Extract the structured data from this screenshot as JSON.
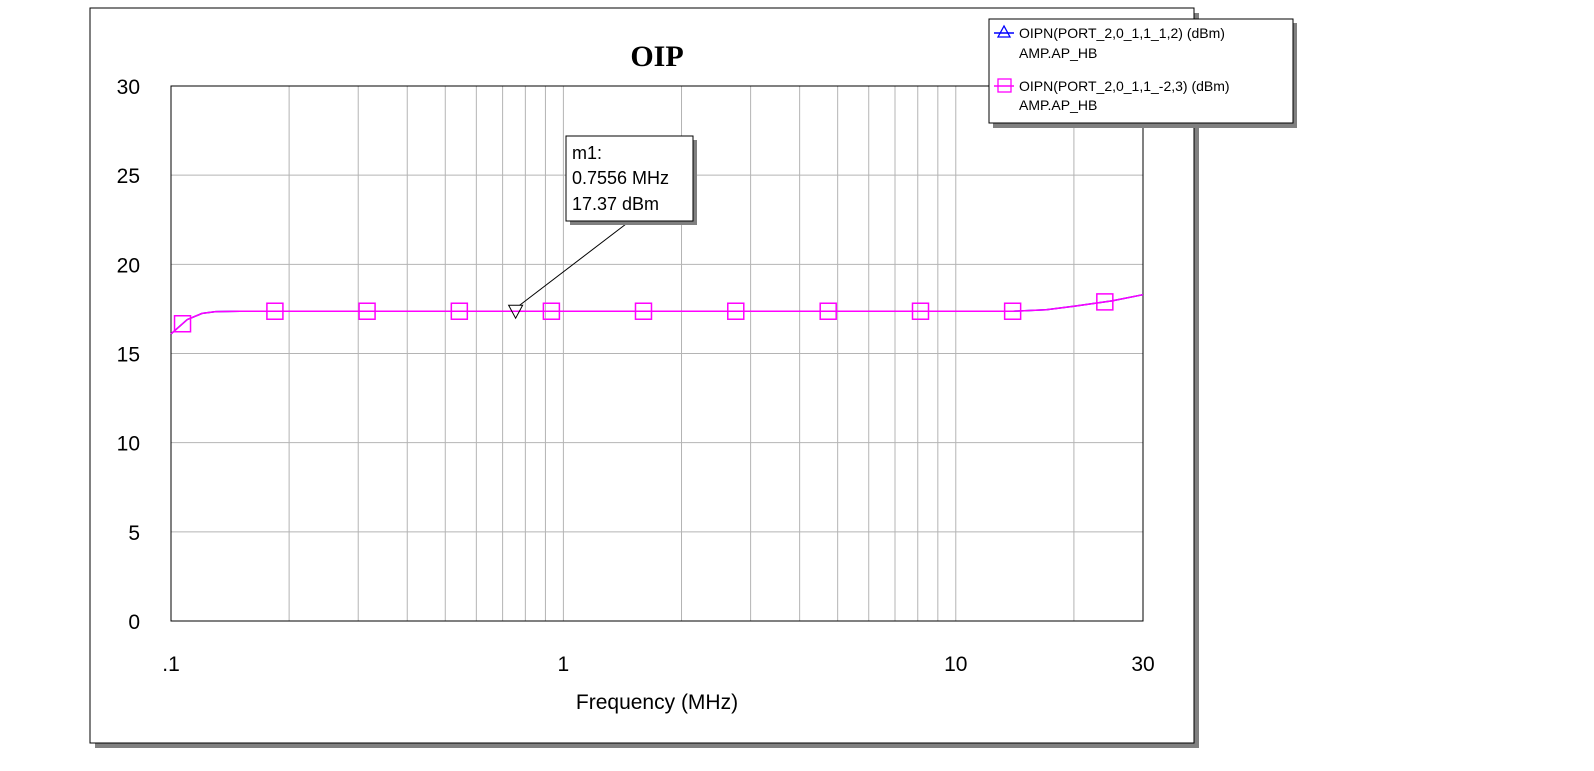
{
  "chart_data": {
    "type": "line",
    "title": "OIP",
    "xlabel": "Frequency (MHz)",
    "ylabel": "",
    "x_scale": "log",
    "xlim": [
      0.1,
      30
    ],
    "ylim": [
      0,
      30
    ],
    "x_tick_labels": [
      {
        "value": 0.1,
        "label": ".1"
      },
      {
        "value": 1,
        "label": "1"
      },
      {
        "value": 10,
        "label": "10"
      },
      {
        "value": 30,
        "label": "30"
      }
    ],
    "y_ticks": [
      0,
      5,
      10,
      15,
      20,
      25,
      30
    ],
    "grid": true,
    "legend_position": "top-right",
    "series": [
      {
        "name": "OIPN(PORT_2,0_1,1_1,2) (dBm)",
        "subname": "AMP.AP_HB",
        "color": "#0000ff",
        "marker": "triangle",
        "x": [
          0.1,
          0.11,
          0.12,
          0.13,
          0.15,
          0.2,
          0.3,
          0.5,
          0.7556,
          1,
          2,
          3,
          5,
          8,
          10,
          14,
          17,
          20,
          25,
          30
        ],
        "values": [
          16.1,
          16.9,
          17.25,
          17.35,
          17.37,
          17.37,
          17.37,
          17.37,
          17.37,
          17.37,
          17.37,
          17.37,
          17.37,
          17.37,
          17.37,
          17.37,
          17.45,
          17.65,
          17.95,
          18.3
        ]
      },
      {
        "name": "OIPN(PORT_2,0_1,1_-2,3) (dBm)",
        "subname": "AMP.AP_HB",
        "color": "#ff00ff",
        "marker": "square",
        "x": [
          0.1,
          0.11,
          0.12,
          0.13,
          0.15,
          0.2,
          0.3,
          0.5,
          0.7556,
          1,
          2,
          3,
          5,
          8,
          10,
          14,
          17,
          20,
          25,
          30
        ],
        "values": [
          16.1,
          16.9,
          17.25,
          17.35,
          17.37,
          17.37,
          17.37,
          17.37,
          17.37,
          17.37,
          17.37,
          17.37,
          17.37,
          17.37,
          17.37,
          17.37,
          17.45,
          17.65,
          17.95,
          18.3
        ],
        "marker_x": [
          0.107,
          0.184,
          0.316,
          0.543,
          0.932,
          1.6,
          2.75,
          4.73,
          8.13,
          13.96,
          23.98
        ]
      }
    ],
    "marker": {
      "name": "m1:",
      "x": 0.7556,
      "y": 17.37,
      "line1": "0.7556 MHz",
      "line2": "17.37 dBm"
    }
  }
}
